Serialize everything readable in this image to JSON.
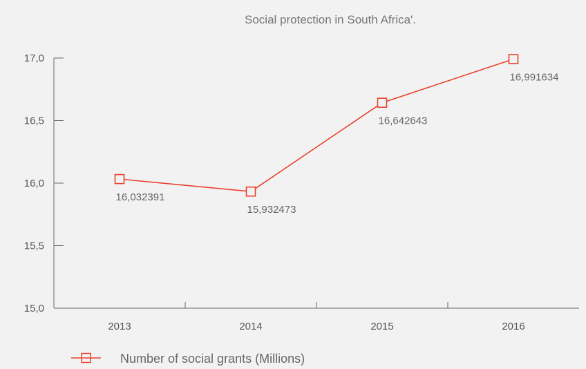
{
  "chart_data": {
    "type": "line",
    "title": "Social protection in South Africa'.",
    "categories": [
      "2013",
      "2014",
      "2015",
      "2016"
    ],
    "x": [
      "2013",
      "2014",
      "2015",
      "2016"
    ],
    "series": [
      {
        "name": "Number of social grants (Millions)",
        "values": [
          16.032391,
          15.932473,
          16.642643,
          16.991634
        ],
        "labels": [
          "16,032391",
          "15,932473",
          "16,642643",
          "16,991634"
        ]
      }
    ],
    "y_ticks": [
      "15,0",
      "15,5",
      "16,0",
      "16,5",
      "17,0"
    ],
    "y_tick_values": [
      15.0,
      15.5,
      16.0,
      16.5,
      17.0
    ],
    "ylim": [
      15.0,
      17.0
    ],
    "xlabel": "",
    "ylabel": "",
    "grid": false,
    "legend_position": "bottom-left",
    "colors": {
      "series": "#e8412c",
      "axis": "#666666",
      "background": "#f2f2f2"
    }
  }
}
